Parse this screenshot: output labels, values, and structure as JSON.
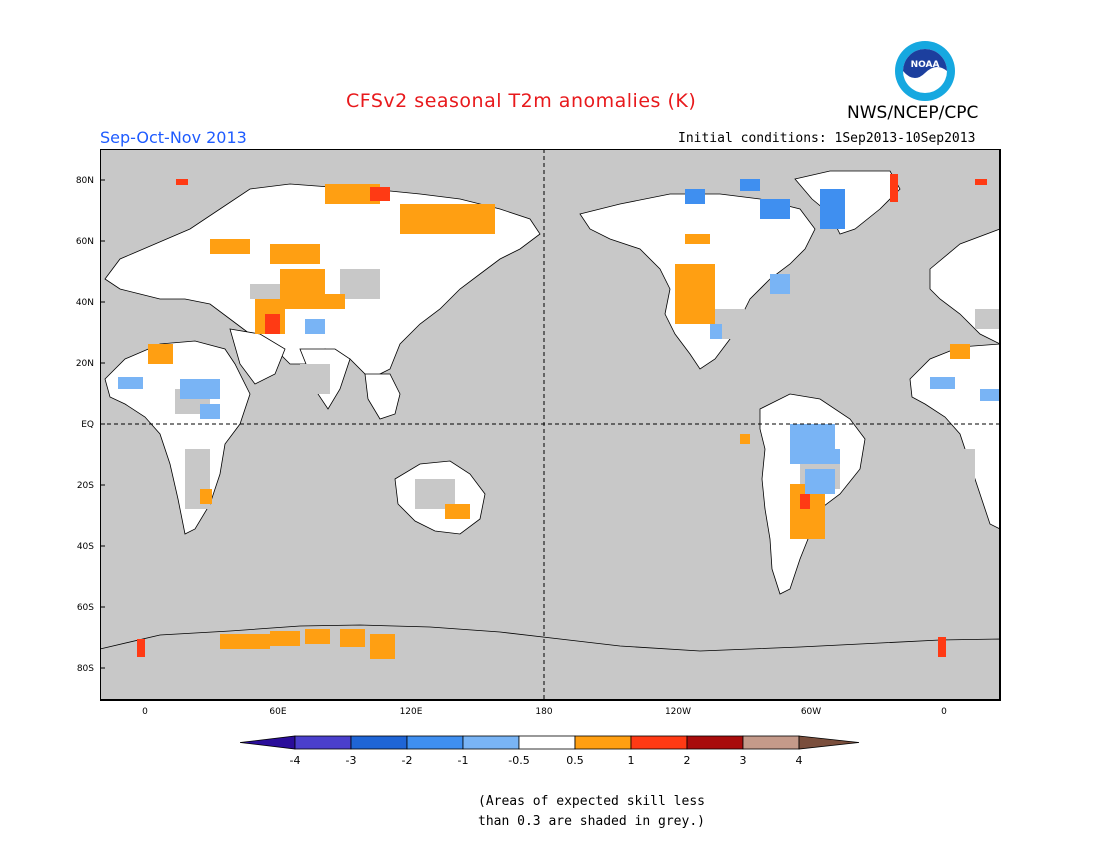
{
  "header": {
    "title": "CFSv2 seasonal T2m anomalies (K)",
    "season": "Sep-Oct-Nov 2013",
    "initial_conditions": "Initial conditions: 1Sep2013-10Sep2013",
    "agency": "NWS/NCEP/CPC",
    "logo_text": "NOAA"
  },
  "map": {
    "projection": "equirectangular",
    "lon_labels": [
      "0",
      "60E",
      "120E",
      "180",
      "120W",
      "60W",
      "0"
    ],
    "lat_labels": [
      "80N",
      "60N",
      "40N",
      "20N",
      "EQ",
      "20S",
      "40S",
      "60S",
      "80S"
    ],
    "background_skill_shading": "#c8c8c8",
    "land_near_zero_color": "#ffffff"
  },
  "colorbar": {
    "tick_labels": [
      "-4",
      "-3",
      "-2",
      "-1",
      "-0.5",
      "0.5",
      "1",
      "2",
      "3",
      "4"
    ],
    "colors": [
      "#2a0d9a",
      "#4a3fcc",
      "#1f65d6",
      "#3f8ff0",
      "#79b4f5",
      "#ffffff",
      "#ff9f12",
      "#ff3a14",
      "#a80c0c",
      "#c49a8a",
      "#7a4e3c"
    ]
  },
  "footnote": {
    "line1": "(Areas of expected skill less",
    "line2": "than 0.3 are shaded in grey.)"
  }
}
